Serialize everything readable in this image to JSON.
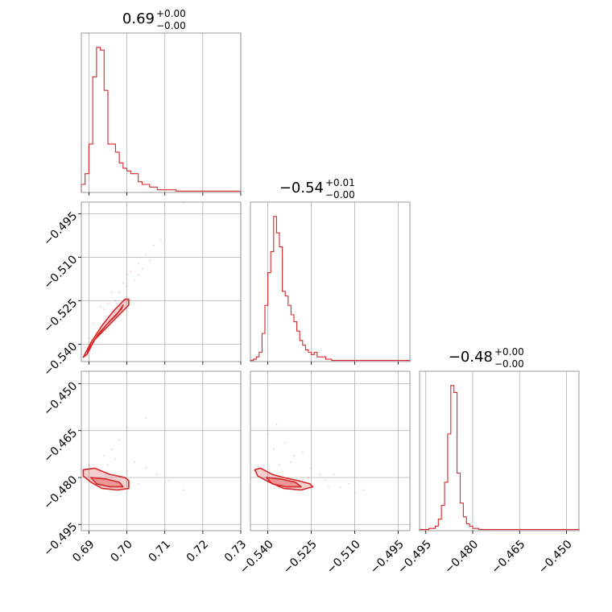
{
  "colors": {
    "accent": "#d62728",
    "grid": "#b0b0b0",
    "frame": "#808080",
    "text": "#000000"
  },
  "chart_data": {
    "type": "corner",
    "grid": true,
    "parameters": [
      {
        "title_value": "0.69",
        "title_plus": "+0.00",
        "title_minus": "−0.00",
        "range": [
          0.688,
          0.73
        ],
        "ticks": [
          0.69,
          0.7,
          0.71,
          0.72,
          0.73
        ],
        "tick_labels": [
          "0.69",
          "0.70",
          "0.71",
          "0.72",
          "0.73"
        ],
        "hist": {
          "bin_width": 0.001,
          "values": [
            3,
            7,
            18,
            43,
            54,
            53,
            38,
            18,
            18,
            15,
            11,
            9,
            8,
            7,
            7,
            4,
            3,
            3,
            2,
            2,
            1,
            1,
            1,
            1,
            1,
            0.5,
            0.5,
            0.5,
            0.5,
            0.5,
            0.5,
            0.5,
            0.5,
            0.5,
            0.5,
            0.5,
            0.5,
            0.5,
            0.5,
            0.5,
            0.5,
            0.5
          ]
        }
      },
      {
        "title_value": "−0.54",
        "title_plus": "+0.01",
        "title_minus": "−0.00",
        "range": [
          -0.546,
          -0.491
        ],
        "ticks": [
          -0.54,
          -0.525,
          -0.51,
          -0.495
        ],
        "tick_labels": [
          "−0.540",
          "−0.525",
          "−0.510",
          "−0.495"
        ],
        "hist": {
          "bin_width": 0.001,
          "values": [
            0.5,
            1,
            2,
            4,
            12,
            24,
            38,
            47,
            62,
            55,
            49,
            30,
            28,
            24,
            20,
            17,
            13,
            9,
            7,
            5,
            4,
            3,
            4,
            2,
            2,
            2,
            1,
            1,
            0.5,
            0.5,
            0.5,
            0.5,
            0.5,
            0.5,
            0.5,
            0.5,
            0.5,
            0.5,
            0.5,
            0.5,
            0.5,
            0.5,
            0.5,
            0.5,
            0.5,
            0.5,
            0.5,
            0.5,
            0.5,
            0.5,
            0.5,
            0.5,
            0.5,
            0.5,
            0.5
          ]
        }
      },
      {
        "title_value": "−0.48",
        "title_plus": "+0.00",
        "title_minus": "−0.00",
        "range": [
          -0.497,
          -0.446
        ],
        "ticks": [
          -0.495,
          -0.48,
          -0.465,
          -0.45
        ],
        "tick_labels": [
          "−0.495",
          "−0.480",
          "−0.465",
          "−0.450"
        ],
        "hist": {
          "bin_width": 0.001,
          "values": [
            0.5,
            0.5,
            0.5,
            1,
            1,
            2,
            5,
            11,
            21,
            42,
            63,
            60,
            25,
            12,
            6,
            3,
            2,
            1,
            1,
            0.5,
            0.5,
            0.5,
            0.5,
            0.5,
            0.5,
            0.5,
            0.5,
            0.5,
            0.5,
            0.5,
            0.5,
            0.5,
            0.5,
            0.5,
            0.5,
            0.5,
            0.5,
            0.5,
            0.5,
            0.5,
            0.5,
            0.5,
            0.5,
            0.5,
            0.5,
            0.5,
            0.5,
            0.5,
            0.5,
            0.5,
            0.5
          ]
        }
      }
    ],
    "pairs": [
      {
        "x_param": 0,
        "y_param": 1,
        "scatter": [
          [
            0.693,
            -0.527
          ],
          [
            0.696,
            -0.522
          ],
          [
            0.699,
            -0.519
          ],
          [
            0.701,
            -0.515
          ],
          [
            0.703,
            -0.512
          ],
          [
            0.705,
            -0.509
          ],
          [
            0.707,
            -0.506
          ],
          [
            0.709,
            -0.504
          ],
          [
            0.715,
            -0.491
          ],
          [
            0.702,
            -0.518
          ],
          [
            0.697,
            -0.525
          ],
          [
            0.7,
            -0.516
          ],
          [
            0.704,
            -0.514
          ],
          [
            0.691,
            -0.533
          ],
          [
            0.694,
            -0.528
          ],
          [
            0.698,
            -0.522
          ],
          [
            0.706,
            -0.511
          ],
          [
            0.7,
            -0.52
          ],
          [
            0.695,
            -0.526
          ],
          [
            0.692,
            -0.536
          ],
          [
            0.689,
            -0.541
          ],
          [
            0.69,
            -0.538
          ],
          [
            0.697,
            -0.531
          ],
          [
            0.703,
            -0.516
          ]
        ],
        "contours": [
          [
            [
              0.6885,
              -0.5445
            ],
            [
              0.6905,
              -0.5395
            ],
            [
              0.6935,
              -0.5335
            ],
            [
              0.6965,
              -0.5285
            ],
            [
              0.6995,
              -0.5245
            ],
            [
              0.7005,
              -0.5245
            ],
            [
              0.7005,
              -0.5265
            ],
            [
              0.6975,
              -0.5305
            ],
            [
              0.6945,
              -0.5345
            ],
            [
              0.6915,
              -0.5385
            ],
            [
              0.6895,
              -0.5435
            ]
          ],
          [
            [
              0.6895,
              -0.5425
            ],
            [
              0.6915,
              -0.5385
            ],
            [
              0.6945,
              -0.5335
            ],
            [
              0.6975,
              -0.5295
            ],
            [
              0.699,
              -0.5265
            ],
            [
              0.6985,
              -0.528
            ],
            [
              0.6955,
              -0.532
            ],
            [
              0.6925,
              -0.5365
            ],
            [
              0.6905,
              -0.5405
            ]
          ]
        ]
      },
      {
        "x_param": 0,
        "y_param": 2,
        "scatter": [
          [
            0.693,
            -0.478
          ],
          [
            0.695,
            -0.476
          ],
          [
            0.697,
            -0.474
          ],
          [
            0.7,
            -0.478
          ],
          [
            0.702,
            -0.475
          ],
          [
            0.705,
            -0.477
          ],
          [
            0.698,
            -0.468
          ],
          [
            0.7,
            -0.464
          ],
          [
            0.705,
            -0.461
          ],
          [
            0.69,
            -0.476
          ],
          [
            0.711,
            -0.481
          ],
          [
            0.715,
            -0.484
          ],
          [
            0.694,
            -0.473
          ],
          [
            0.699,
            -0.48
          ],
          [
            0.703,
            -0.482
          ],
          [
            0.692,
            -0.481
          ],
          [
            0.696,
            -0.471
          ],
          [
            0.708,
            -0.479
          ]
        ],
        "contours": [
          [
            [
              0.6885,
              -0.4775
            ],
            [
              0.6915,
              -0.477
            ],
            [
              0.6955,
              -0.479
            ],
            [
              0.6995,
              -0.48
            ],
            [
              0.7005,
              -0.481
            ],
            [
              0.7005,
              -0.4835
            ],
            [
              0.6975,
              -0.484
            ],
            [
              0.6935,
              -0.4835
            ],
            [
              0.6905,
              -0.4815
            ],
            [
              0.6885,
              -0.4795
            ]
          ],
          [
            [
              0.6905,
              -0.48
            ],
            [
              0.6945,
              -0.4805
            ],
            [
              0.698,
              -0.4815
            ],
            [
              0.699,
              -0.483
            ],
            [
              0.6955,
              -0.483
            ],
            [
              0.692,
              -0.482
            ]
          ]
        ]
      },
      {
        "x_param": 1,
        "y_param": 2,
        "scatter": [
          [
            -0.536,
            -0.476
          ],
          [
            -0.531,
            -0.473
          ],
          [
            -0.525,
            -0.477
          ],
          [
            -0.522,
            -0.479
          ],
          [
            -0.519,
            -0.483
          ],
          [
            -0.515,
            -0.483
          ],
          [
            -0.51,
            -0.485
          ],
          [
            -0.507,
            -0.484
          ],
          [
            -0.54,
            -0.466
          ],
          [
            -0.537,
            -0.463
          ],
          [
            -0.534,
            -0.469
          ],
          [
            -0.528,
            -0.472
          ],
          [
            -0.52,
            -0.481
          ],
          [
            -0.538,
            -0.471
          ],
          [
            -0.532,
            -0.475
          ],
          [
            -0.526,
            -0.48
          ],
          [
            -0.517,
            -0.479
          ],
          [
            -0.512,
            -0.482
          ]
        ],
        "contours": [
          [
            [
              -0.5445,
              -0.4775
            ],
            [
              -0.5425,
              -0.477
            ],
            [
              -0.5385,
              -0.479
            ],
            [
              -0.5345,
              -0.48
            ],
            [
              -0.5295,
              -0.481
            ],
            [
              -0.5255,
              -0.482
            ],
            [
              -0.5245,
              -0.483
            ],
            [
              -0.5285,
              -0.484
            ],
            [
              -0.5345,
              -0.4835
            ],
            [
              -0.5395,
              -0.4815
            ],
            [
              -0.5435,
              -0.4795
            ]
          ],
          [
            [
              -0.5405,
              -0.48
            ],
            [
              -0.5355,
              -0.4805
            ],
            [
              -0.5305,
              -0.4815
            ],
            [
              -0.5285,
              -0.483
            ],
            [
              -0.5335,
              -0.483
            ],
            [
              -0.5385,
              -0.482
            ]
          ]
        ]
      }
    ]
  }
}
